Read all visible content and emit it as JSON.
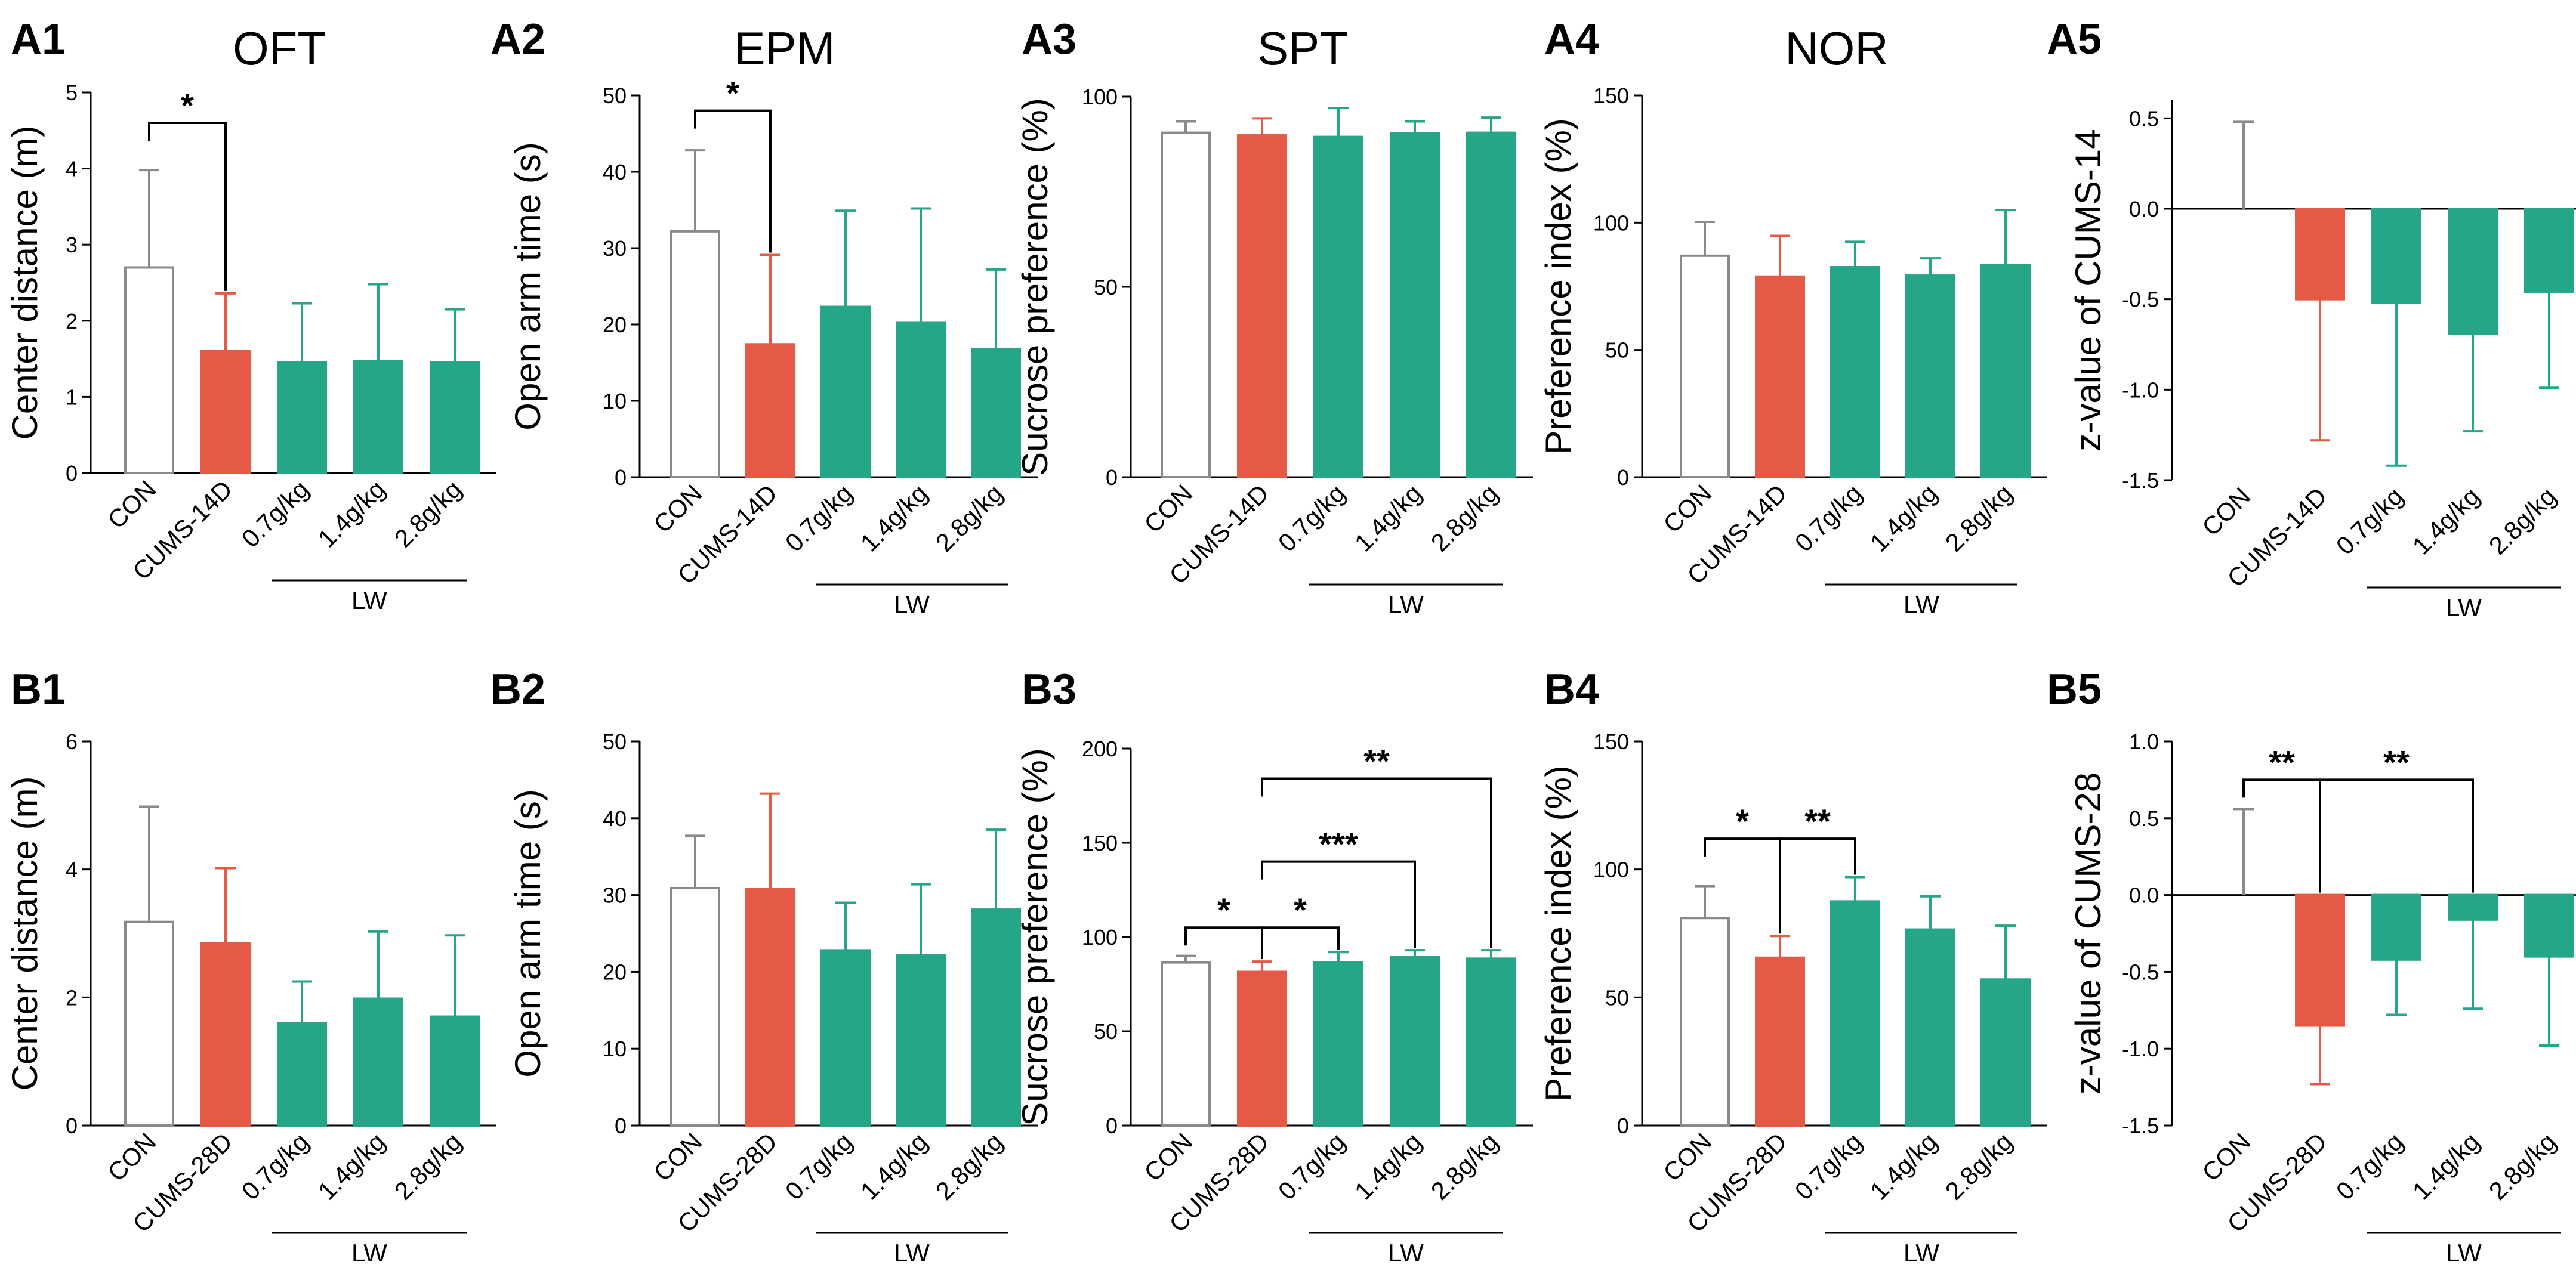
{
  "colors": {
    "con_stroke": "#8a8a8a",
    "cums": "#e55a46",
    "lw": "#25a689",
    "axis": "#000000"
  },
  "chart_data": [
    {
      "id": "A1",
      "panel_label": "A1",
      "title": "OFT",
      "type": "bar",
      "ylabel": "Center distance (m)",
      "categories": [
        "CON",
        "CUMS-14D",
        "0.7g/kg",
        "1.4g/kg",
        "2.8g/kg"
      ],
      "group_label": "LW",
      "ylim": [
        0,
        5
      ],
      "yticks": [
        "0",
        "1",
        "2",
        "3",
        "4",
        "5"
      ],
      "values": [
        2.7,
        1.6,
        1.45,
        1.47,
        1.45
      ],
      "errors": [
        1.28,
        0.76,
        0.78,
        1.01,
        0.7
      ],
      "significance": [
        {
          "from": 0,
          "to": 1,
          "label": "*",
          "bar_value": 4.6
        }
      ]
    },
    {
      "id": "A2",
      "panel_label": "A2",
      "title": "EPM",
      "type": "bar",
      "ylabel": "Open arm time (s)",
      "categories": [
        "CON",
        "CUMS-14D",
        "0.7g/kg",
        "1.4g/kg",
        "2.8g/kg"
      ],
      "group_label": "LW",
      "ylim": [
        0,
        50
      ],
      "yticks": [
        "0",
        "10",
        "20",
        "30",
        "40",
        "50"
      ],
      "values": [
        32.2,
        17.4,
        22.3,
        20.2,
        16.8
      ],
      "errors": [
        10.6,
        11.7,
        12.6,
        15.0,
        10.4
      ],
      "significance": [
        {
          "from": 0,
          "to": 1,
          "label": "*",
          "bar_value": 48
        }
      ]
    },
    {
      "id": "A3",
      "panel_label": "A3",
      "title": "SPT",
      "type": "bar",
      "ylabel": "Sucrose preference (%)",
      "categories": [
        "CON",
        "CUMS-14D",
        "0.7g/kg",
        "1.4g/kg",
        "2.8g/kg"
      ],
      "group_label": "LW",
      "ylim": [
        0,
        100
      ],
      "yticks": [
        "0",
        "50",
        "100"
      ],
      "values": [
        90.5,
        89.8,
        89.4,
        90.3,
        90.5
      ],
      "errors": [
        3.0,
        4.5,
        7.6,
        3.2,
        4.0
      ],
      "significance": []
    },
    {
      "id": "A4",
      "panel_label": "A4",
      "title": "NOR",
      "type": "bar",
      "ylabel": "Preference index (%)",
      "categories": [
        "CON",
        "CUMS-14D",
        "0.7g/kg",
        "1.4g/kg",
        "2.8g/kg"
      ],
      "group_label": "LW",
      "ylim": [
        0,
        150
      ],
      "yticks": [
        "0",
        "50",
        "100",
        "150"
      ],
      "values": [
        87,
        78.8,
        82.5,
        79.2,
        83.3
      ],
      "errors": [
        13.3,
        16.0,
        10.0,
        6.8,
        21.7
      ],
      "significance": []
    },
    {
      "id": "A5",
      "panel_label": "A5",
      "title": "",
      "type": "bar",
      "ylabel": "z-value of CUMS-14",
      "categories": [
        "CON",
        "CUMS-14D",
        "0.7g/kg",
        "1.4g/kg",
        "2.8g/kg"
      ],
      "group_label": "LW",
      "ylim": [
        -1.5,
        0.6
      ],
      "yticks": [
        "-1.5",
        "-1.0",
        "-0.5",
        "0.0",
        "0.5"
      ],
      "ytick_values": [
        -1.5,
        -1.0,
        -0.5,
        0.0,
        0.5
      ],
      "values": [
        0.0,
        -0.5,
        -0.52,
        -0.69,
        -0.46
      ],
      "errors": [
        0.48,
        0.78,
        0.9,
        0.54,
        0.53
      ],
      "significance": []
    },
    {
      "id": "B1",
      "panel_label": "B1",
      "title": "",
      "type": "bar",
      "ylabel": "Center distance (m)",
      "categories": [
        "CON",
        "CUMS-28D",
        "0.7g/kg",
        "1.4g/kg",
        "2.8g/kg"
      ],
      "group_label": "LW",
      "ylim": [
        0,
        6
      ],
      "yticks": [
        "0",
        "2",
        "4",
        "6"
      ],
      "values": [
        3.18,
        2.85,
        1.6,
        1.98,
        1.7
      ],
      "errors": [
        1.8,
        1.17,
        0.65,
        1.05,
        1.27
      ],
      "significance": []
    },
    {
      "id": "B2",
      "panel_label": "B2",
      "title": "",
      "type": "bar",
      "ylabel": "Open arm time (s)",
      "categories": [
        "CON",
        "CUMS-28D",
        "0.7g/kg",
        "1.4g/kg",
        "2.8g/kg"
      ],
      "group_label": "LW",
      "ylim": [
        0,
        50
      ],
      "yticks": [
        "0",
        "10",
        "20",
        "30",
        "40",
        "50"
      ],
      "values": [
        30.9,
        30.8,
        22.8,
        22.2,
        28.1
      ],
      "errors": [
        6.8,
        12.4,
        6.2,
        9.2,
        10.4
      ],
      "significance": []
    },
    {
      "id": "B3",
      "panel_label": "B3",
      "title": "",
      "type": "bar",
      "ylabel": "Sucrose preference (%)",
      "categories": [
        "CON",
        "CUMS-28D",
        "0.7g/kg",
        "1.4g/kg",
        "2.8g/kg"
      ],
      "group_label": "LW",
      "ylim": [
        0,
        200
      ],
      "yticks": [
        "0",
        "50",
        "100",
        "150",
        "200"
      ],
      "values": [
        86.5,
        81.5,
        86.5,
        89.5,
        88.5
      ],
      "errors": [
        3.5,
        5.5,
        5.5,
        3.5,
        4.5
      ],
      "significance": [
        {
          "from": 0,
          "to": 1,
          "label": "*",
          "bar_value": 105
        },
        {
          "from": 1,
          "to": 2,
          "label": "*",
          "bar_value": 105
        },
        {
          "from": 1,
          "to": 3,
          "label": "***",
          "bar_value": 140
        },
        {
          "from": 1,
          "to": 4,
          "label": "**",
          "bar_value": 184
        }
      ]
    },
    {
      "id": "B4",
      "panel_label": "B4",
      "title": "",
      "type": "bar",
      "ylabel": "Preference index (%)",
      "categories": [
        "CON",
        "CUMS-28D",
        "0.7g/kg",
        "1.4g/kg",
        "2.8g/kg"
      ],
      "group_label": "LW",
      "ylim": [
        0,
        150
      ],
      "yticks": [
        "0",
        "50",
        "100",
        "150"
      ],
      "values": [
        81,
        65.5,
        87.5,
        76.5,
        57
      ],
      "errors": [
        12.5,
        8.5,
        9.5,
        13.0,
        21.0
      ],
      "significance": [
        {
          "from": 0,
          "to": 1,
          "label": "*",
          "bar_value": 112
        },
        {
          "from": 1,
          "to": 2,
          "label": "**",
          "bar_value": 112
        }
      ]
    },
    {
      "id": "B5",
      "panel_label": "B5",
      "title": "",
      "type": "bar",
      "ylabel": "z-value of CUMS-28",
      "categories": [
        "CON",
        "CUMS-28D",
        "0.7g/kg",
        "1.4g/kg",
        "2.8g/kg"
      ],
      "group_label": "LW",
      "ylim": [
        -1.5,
        1.0
      ],
      "yticks": [
        "-1.5",
        "-1.0",
        "-0.5",
        "0.0",
        "0.5",
        "1.0"
      ],
      "ytick_values": [
        -1.5,
        -1.0,
        -0.5,
        0.0,
        0.5,
        1.0
      ],
      "values": [
        0.0,
        -0.85,
        -0.42,
        -0.16,
        -0.4
      ],
      "errors": [
        0.56,
        0.38,
        0.36,
        0.58,
        0.58
      ],
      "significance": [
        {
          "from": 0,
          "to": 1,
          "label": "**",
          "bar_value": 0.75
        },
        {
          "from": 1,
          "to": 3,
          "label": "**",
          "bar_value": 0.75
        }
      ]
    }
  ]
}
